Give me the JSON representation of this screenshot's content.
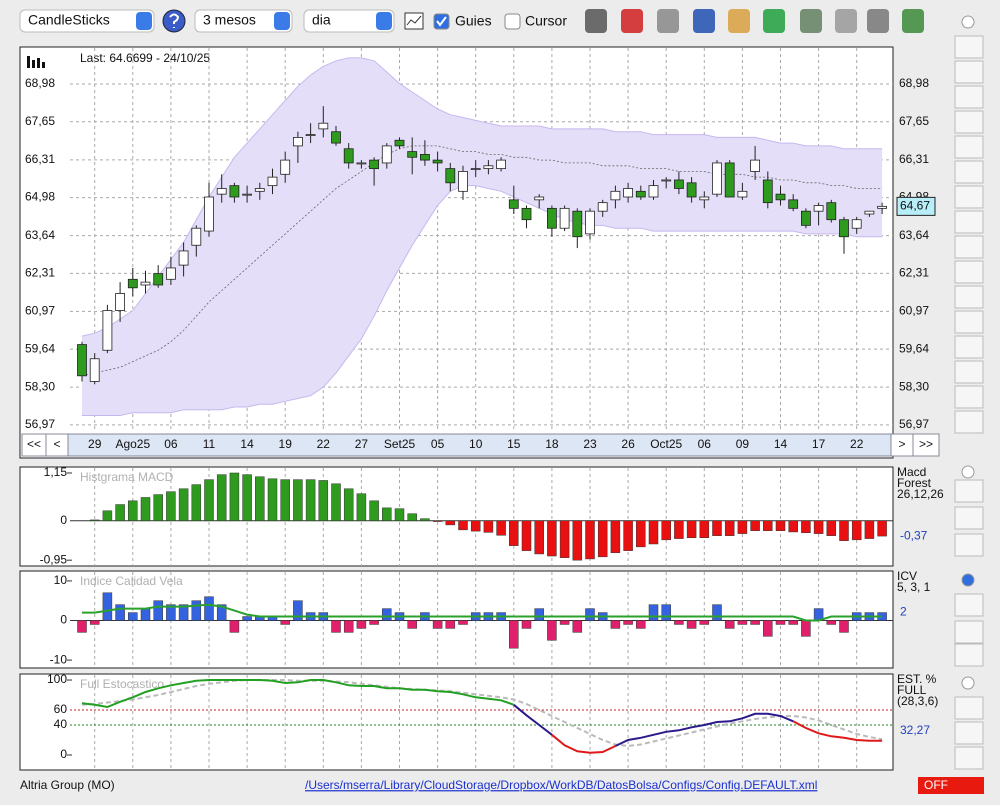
{
  "toolbar": {
    "chart_style": "CandleSticks",
    "period": "3 mesos",
    "interval": "dia",
    "guides": {
      "label": "Guies",
      "checked": true
    },
    "cursor": {
      "label": "Cursor",
      "checked": false
    }
  },
  "chart_data": [
    {
      "type": "candlestick",
      "annotation": "Last: 64.6699 - 24/10/25",
      "nav": [
        "<<",
        "<",
        ">",
        ">>"
      ],
      "categories": [
        null,
        "29",
        null,
        null,
        "Ago25",
        null,
        null,
        "06",
        null,
        null,
        "11",
        null,
        null,
        "14",
        null,
        null,
        "19",
        null,
        null,
        "22",
        null,
        null,
        "27",
        null,
        null,
        "Set25",
        null,
        null,
        "05",
        null,
        null,
        "10",
        null,
        null,
        "15",
        null,
        null,
        "18",
        null,
        null,
        "23",
        null,
        null,
        "26",
        null,
        null,
        "Oct25",
        null,
        null,
        "06",
        null,
        null,
        "09",
        null,
        null,
        "14",
        null,
        null,
        "17",
        null,
        null,
        "22",
        null,
        null
      ],
      "open": [
        59.8,
        58.5,
        59.6,
        61.0,
        62.1,
        61.9,
        62.3,
        62.1,
        62.6,
        63.3,
        63.8,
        65.1,
        65.4,
        65.1,
        65.2,
        65.4,
        65.8,
        66.8,
        67.2,
        67.4,
        67.3,
        66.7,
        66.2,
        66.3,
        66.2,
        67.0,
        66.6,
        66.5,
        66.3,
        66.0,
        65.2,
        66.0,
        66.0,
        66.0,
        64.9,
        64.6,
        64.9,
        64.6,
        63.9,
        64.5,
        63.7,
        64.5,
        64.9,
        65.0,
        65.2,
        65.0,
        65.6,
        65.6,
        65.5,
        64.9,
        65.1,
        66.2,
        65.0,
        65.9,
        65.6,
        65.1,
        64.9,
        64.5,
        64.5,
        64.8,
        64.2,
        63.9,
        64.4,
        64.6
      ],
      "high": [
        59.9,
        59.5,
        61.2,
        62.0,
        62.5,
        62.4,
        62.6,
        62.9,
        63.4,
        64.0,
        65.5,
        65.8,
        65.5,
        65.4,
        65.5,
        66.0,
        66.6,
        67.3,
        67.6,
        68.2,
        67.5,
        66.9,
        66.3,
        66.4,
        66.9,
        67.1,
        67.1,
        67.0,
        66.6,
        66.2,
        66.1,
        66.3,
        66.3,
        66.4,
        65.4,
        64.7,
        65.1,
        64.7,
        64.7,
        64.6,
        64.6,
        64.9,
        65.4,
        65.5,
        65.4,
        65.6,
        65.7,
        65.9,
        65.7,
        65.2,
        66.3,
        66.3,
        65.5,
        66.8,
        65.9,
        65.4,
        65.1,
        64.6,
        64.8,
        64.9,
        64.3,
        64.3,
        64.5,
        64.8
      ],
      "low": [
        58.5,
        58.4,
        59.5,
        60.6,
        61.5,
        61.6,
        61.8,
        61.9,
        62.2,
        62.9,
        63.6,
        64.8,
        64.8,
        64.8,
        64.9,
        65.1,
        65.5,
        66.2,
        66.9,
        67.1,
        66.8,
        66.0,
        66.0,
        65.4,
        66.0,
        66.7,
        65.8,
        66.1,
        65.9,
        65.2,
        64.9,
        65.7,
        65.8,
        65.9,
        64.4,
        63.9,
        64.6,
        63.6,
        63.8,
        63.2,
        63.5,
        64.3,
        64.6,
        64.8,
        64.9,
        64.9,
        65.3,
        65.1,
        64.8,
        64.6,
        65.0,
        65.0,
        64.9,
        65.6,
        64.6,
        64.7,
        64.5,
        63.9,
        64.0,
        64.1,
        63.0,
        63.7,
        64.3,
        64.4
      ],
      "close": [
        58.7,
        59.3,
        61.0,
        61.6,
        61.8,
        62.0,
        61.9,
        62.5,
        63.1,
        63.9,
        65.0,
        65.3,
        65.0,
        65.1,
        65.3,
        65.7,
        66.3,
        67.1,
        67.2,
        67.6,
        66.9,
        66.2,
        66.2,
        66.0,
        66.8,
        66.8,
        66.4,
        66.3,
        66.2,
        65.5,
        65.9,
        66.0,
        66.1,
        66.3,
        64.6,
        64.2,
        65.0,
        63.9,
        64.6,
        63.6,
        64.5,
        64.8,
        65.2,
        65.3,
        65.0,
        65.4,
        65.6,
        65.3,
        65.0,
        65.0,
        66.2,
        65.0,
        65.2,
        66.3,
        64.8,
        64.9,
        64.6,
        64.0,
        64.7,
        64.2,
        63.6,
        64.2,
        64.5,
        64.67
      ],
      "bands": {
        "upper": [
          60.1,
          60.2,
          60.4,
          60.7,
          61.0,
          61.6,
          62.2,
          62.8,
          63.4,
          64.2,
          65.0,
          65.7,
          66.4,
          66.9,
          67.4,
          67.9,
          68.4,
          68.9,
          69.3,
          69.6,
          69.8,
          69.9,
          69.9,
          69.8,
          69.4,
          69.0,
          68.7,
          68.4,
          68.1,
          67.9,
          67.8,
          67.7,
          67.6,
          67.5,
          67.5,
          67.5,
          67.5,
          67.4,
          67.4,
          67.4,
          67.4,
          67.4,
          67.3,
          67.3,
          67.3,
          67.2,
          67.2,
          67.2,
          67.2,
          67.2,
          67.1,
          67.1,
          67.1,
          67.1,
          67.0,
          66.9,
          66.9,
          66.8,
          66.8,
          66.8,
          66.7,
          66.7,
          66.7,
          66.7
        ],
        "middle": [
          58.7,
          58.8,
          58.9,
          59.0,
          59.2,
          59.4,
          59.6,
          59.9,
          60.3,
          60.8,
          61.3,
          61.7,
          62.1,
          62.5,
          62.9,
          63.3,
          63.7,
          64.1,
          64.5,
          64.9,
          65.3,
          65.6,
          65.9,
          66.2,
          66.5,
          66.7,
          66.8,
          66.8,
          66.8,
          66.7,
          66.6,
          66.6,
          66.5,
          66.5,
          66.4,
          66.4,
          66.3,
          66.3,
          66.2,
          66.2,
          66.2,
          66.1,
          66.1,
          66.1,
          66.0,
          66.0,
          66.0,
          65.9,
          65.9,
          65.9,
          65.8,
          65.8,
          65.8,
          65.7,
          65.7,
          65.6,
          65.6,
          65.5,
          65.5,
          65.4,
          65.4,
          65.3,
          65.3,
          65.3
        ],
        "lower": [
          57.3,
          57.3,
          57.3,
          57.3,
          57.4,
          57.4,
          57.4,
          57.4,
          57.5,
          57.5,
          57.5,
          57.5,
          57.6,
          57.6,
          57.7,
          57.7,
          57.8,
          57.9,
          58.0,
          58.3,
          58.8,
          59.4,
          60.0,
          60.8,
          61.7,
          62.5,
          63.3,
          64.0,
          64.7,
          65.2,
          65.4,
          65.4,
          65.3,
          65.2,
          65.0,
          64.8,
          64.6,
          64.4,
          64.2,
          64.1,
          64.0,
          64.0,
          63.9,
          63.9,
          63.9,
          63.8,
          63.8,
          63.8,
          63.8,
          63.8,
          63.8,
          63.8,
          63.8,
          63.8,
          63.8,
          63.8,
          63.8,
          63.7,
          63.7,
          63.7,
          63.7,
          63.6,
          63.6,
          63.6
        ],
        "fill": "#e4def8",
        "stroke": "#c6b8ee",
        "middle_color": "#666666"
      },
      "up_color": "#ffffff",
      "down_color": "#2e9a1e",
      "last_price": {
        "value": 64.67,
        "label": "64,67"
      },
      "ylim": [
        56.79,
        70.25
      ],
      "yticks": [
        {
          "value": 56.97,
          "label": "56,97"
        },
        {
          "value": 58.3,
          "label": "58,30"
        },
        {
          "value": 59.64,
          "label": "59,64"
        },
        {
          "value": 60.97,
          "label": "60,97"
        },
        {
          "value": 62.31,
          "label": "62,31"
        },
        {
          "value": 63.64,
          "label": "63,64"
        },
        {
          "value": 64.98,
          "label": "64,98"
        },
        {
          "value": 66.31,
          "label": "66,31"
        },
        {
          "value": 67.65,
          "label": "67,65"
        },
        {
          "value": 68.98,
          "label": "68,98"
        }
      ],
      "grid": true
    },
    {
      "type": "bar",
      "title": "Histgrama MACD",
      "legend": [
        "Macd",
        "Forest",
        "26,12,26"
      ],
      "current": {
        "value": -0.37,
        "label": "-0,37"
      },
      "values": [
        0,
        0.02,
        0.24,
        0.39,
        0.48,
        0.56,
        0.63,
        0.7,
        0.77,
        0.87,
        0.99,
        1.11,
        1.15,
        1.11,
        1.06,
        1.01,
        0.99,
        0.99,
        0.99,
        0.97,
        0.89,
        0.77,
        0.65,
        0.48,
        0.31,
        0.29,
        0.17,
        0.05,
        -0.02,
        -0.1,
        -0.22,
        -0.25,
        -0.28,
        -0.35,
        -0.6,
        -0.72,
        -0.8,
        -0.85,
        -0.89,
        -0.95,
        -0.92,
        -0.87,
        -0.77,
        -0.72,
        -0.63,
        -0.56,
        -0.46,
        -0.43,
        -0.41,
        -0.41,
        -0.36,
        -0.36,
        -0.31,
        -0.24,
        -0.24,
        -0.24,
        -0.27,
        -0.29,
        -0.31,
        -0.36,
        -0.48,
        -0.46,
        -0.43,
        -0.37
      ],
      "positive_color": "#2e9a1e",
      "negative_color": "#e81010",
      "ylim": [
        -1.09,
        1.27
      ],
      "yticks": [
        {
          "value": 1.15,
          "label": "1,15"
        },
        0,
        {
          "value": -0.95,
          "label": "-0,95"
        }
      ]
    },
    {
      "type": "bar",
      "title": "Indice Calidad Vela",
      "legend": [
        "ICV",
        "5, 3, 1"
      ],
      "current": 2,
      "values": [
        -3,
        -1,
        7,
        4,
        2,
        3,
        5,
        4,
        4,
        5,
        6,
        4,
        -3,
        1,
        1,
        1,
        -1,
        5,
        2,
        2,
        -3,
        -3,
        -2,
        -1,
        3,
        2,
        -2,
        2,
        -2,
        -2,
        -1,
        2,
        2,
        2,
        -7,
        -2,
        3,
        -5,
        -1,
        -3,
        3,
        2,
        -2,
        -1,
        -2,
        4,
        4,
        -1,
        -2,
        -1,
        4,
        -2,
        -1,
        -1,
        -4,
        -1,
        -1,
        -4,
        3,
        -1,
        -3,
        2,
        2,
        2
      ],
      "positive_color": "#3563e0",
      "negative_color": "#e0206a",
      "line_values": [
        2,
        2,
        2.5,
        3,
        3,
        3,
        3.5,
        3.5,
        3.5,
        3.8,
        4,
        3.5,
        2.5,
        1.5,
        1,
        1,
        1,
        1,
        1,
        1,
        1,
        1,
        1,
        1,
        1,
        1,
        1,
        1,
        1,
        1,
        1,
        1,
        1,
        1,
        1,
        1,
        1,
        1,
        1,
        1,
        1,
        1,
        1,
        1,
        1,
        1,
        1,
        1,
        1,
        1,
        1,
        1,
        1,
        1,
        1,
        1,
        1,
        0,
        0,
        1,
        1,
        1,
        1,
        1
      ],
      "line_color": "#2aa12a",
      "ylim": [
        -12,
        12.25
      ],
      "yticks": [
        10,
        0,
        -10
      ]
    },
    {
      "type": "line",
      "title": "Full Estocastico",
      "legend": [
        "EST. %",
        "FULL",
        "(28,3,6)"
      ],
      "current": {
        "value": 32.27,
        "label": "32,27"
      },
      "series": [
        {
          "color": "#bbbbbb",
          "dashed": true,
          "values": [
            67,
            68,
            70,
            72,
            74,
            77,
            80,
            84,
            88,
            92,
            95,
            97,
            99,
            100,
            100,
            100,
            100,
            99,
            99,
            99,
            98,
            97,
            95,
            93,
            91,
            89,
            88,
            87,
            86,
            85,
            83,
            81,
            79,
            77,
            74,
            68,
            60,
            52,
            44,
            36,
            28,
            20,
            14,
            12,
            14,
            18,
            22,
            26,
            30,
            34,
            38,
            42,
            45,
            48,
            50,
            52,
            52,
            50,
            46,
            40,
            34,
            28,
            24,
            21
          ]
        },
        {
          "color": "#22a022",
          "dashed": false,
          "values": [
            69,
            67,
            64,
            71,
            77,
            84,
            89,
            93,
            96,
            99,
            100,
            100,
            100,
            100,
            100,
            99,
            96,
            97,
            100,
            100,
            97,
            93,
            92,
            92,
            89,
            89,
            87,
            87,
            85,
            84,
            81,
            77,
            75,
            73,
            67,
            null,
            null,
            null,
            null,
            null,
            null,
            null,
            null,
            null,
            null,
            null,
            null,
            null,
            null,
            null,
            null,
            null,
            null,
            null,
            null,
            null,
            null,
            null,
            null,
            null,
            null,
            null,
            null,
            null
          ]
        },
        {
          "color": "#2a1a8a",
          "dashed": false,
          "values": [
            null,
            null,
            null,
            null,
            null,
            null,
            null,
            null,
            null,
            null,
            null,
            null,
            null,
            null,
            null,
            null,
            null,
            null,
            null,
            null,
            null,
            null,
            null,
            null,
            null,
            null,
            null,
            null,
            null,
            null,
            null,
            null,
            null,
            null,
            67,
            53,
            40,
            27,
            null,
            null,
            null,
            null,
            12,
            20,
            23,
            27,
            31,
            33,
            37,
            40,
            44,
            45,
            49,
            55,
            55,
            52,
            45,
            null,
            null,
            null,
            null,
            null,
            null,
            null
          ]
        },
        {
          "color": "#e01818",
          "dashed": false,
          "values": [
            null,
            null,
            null,
            null,
            null,
            null,
            null,
            null,
            null,
            null,
            null,
            null,
            null,
            null,
            null,
            null,
            null,
            null,
            null,
            null,
            null,
            null,
            null,
            null,
            null,
            null,
            null,
            null,
            null,
            null,
            null,
            null,
            null,
            null,
            null,
            null,
            null,
            27,
            13,
            5,
            3,
            4,
            12,
            null,
            null,
            null,
            null,
            null,
            null,
            null,
            null,
            null,
            null,
            null,
            null,
            null,
            45,
            36,
            29,
            25,
            23,
            20,
            19,
            19
          ]
        }
      ],
      "ylim": [
        -20,
        106.7
      ],
      "yticks": [
        100,
        60,
        40,
        0
      ],
      "level_colors": [
        "#333333",
        "#c02020",
        "#208020",
        "#333333"
      ]
    }
  ],
  "footer": {
    "instrument": "Altria Group (MO)",
    "config_path": "/Users/mserra/Library/CloudStorage/Dropbox/WorkDB/DatosBolsa/Configs/Config.DEFAULT.xml",
    "status": "OFF"
  }
}
